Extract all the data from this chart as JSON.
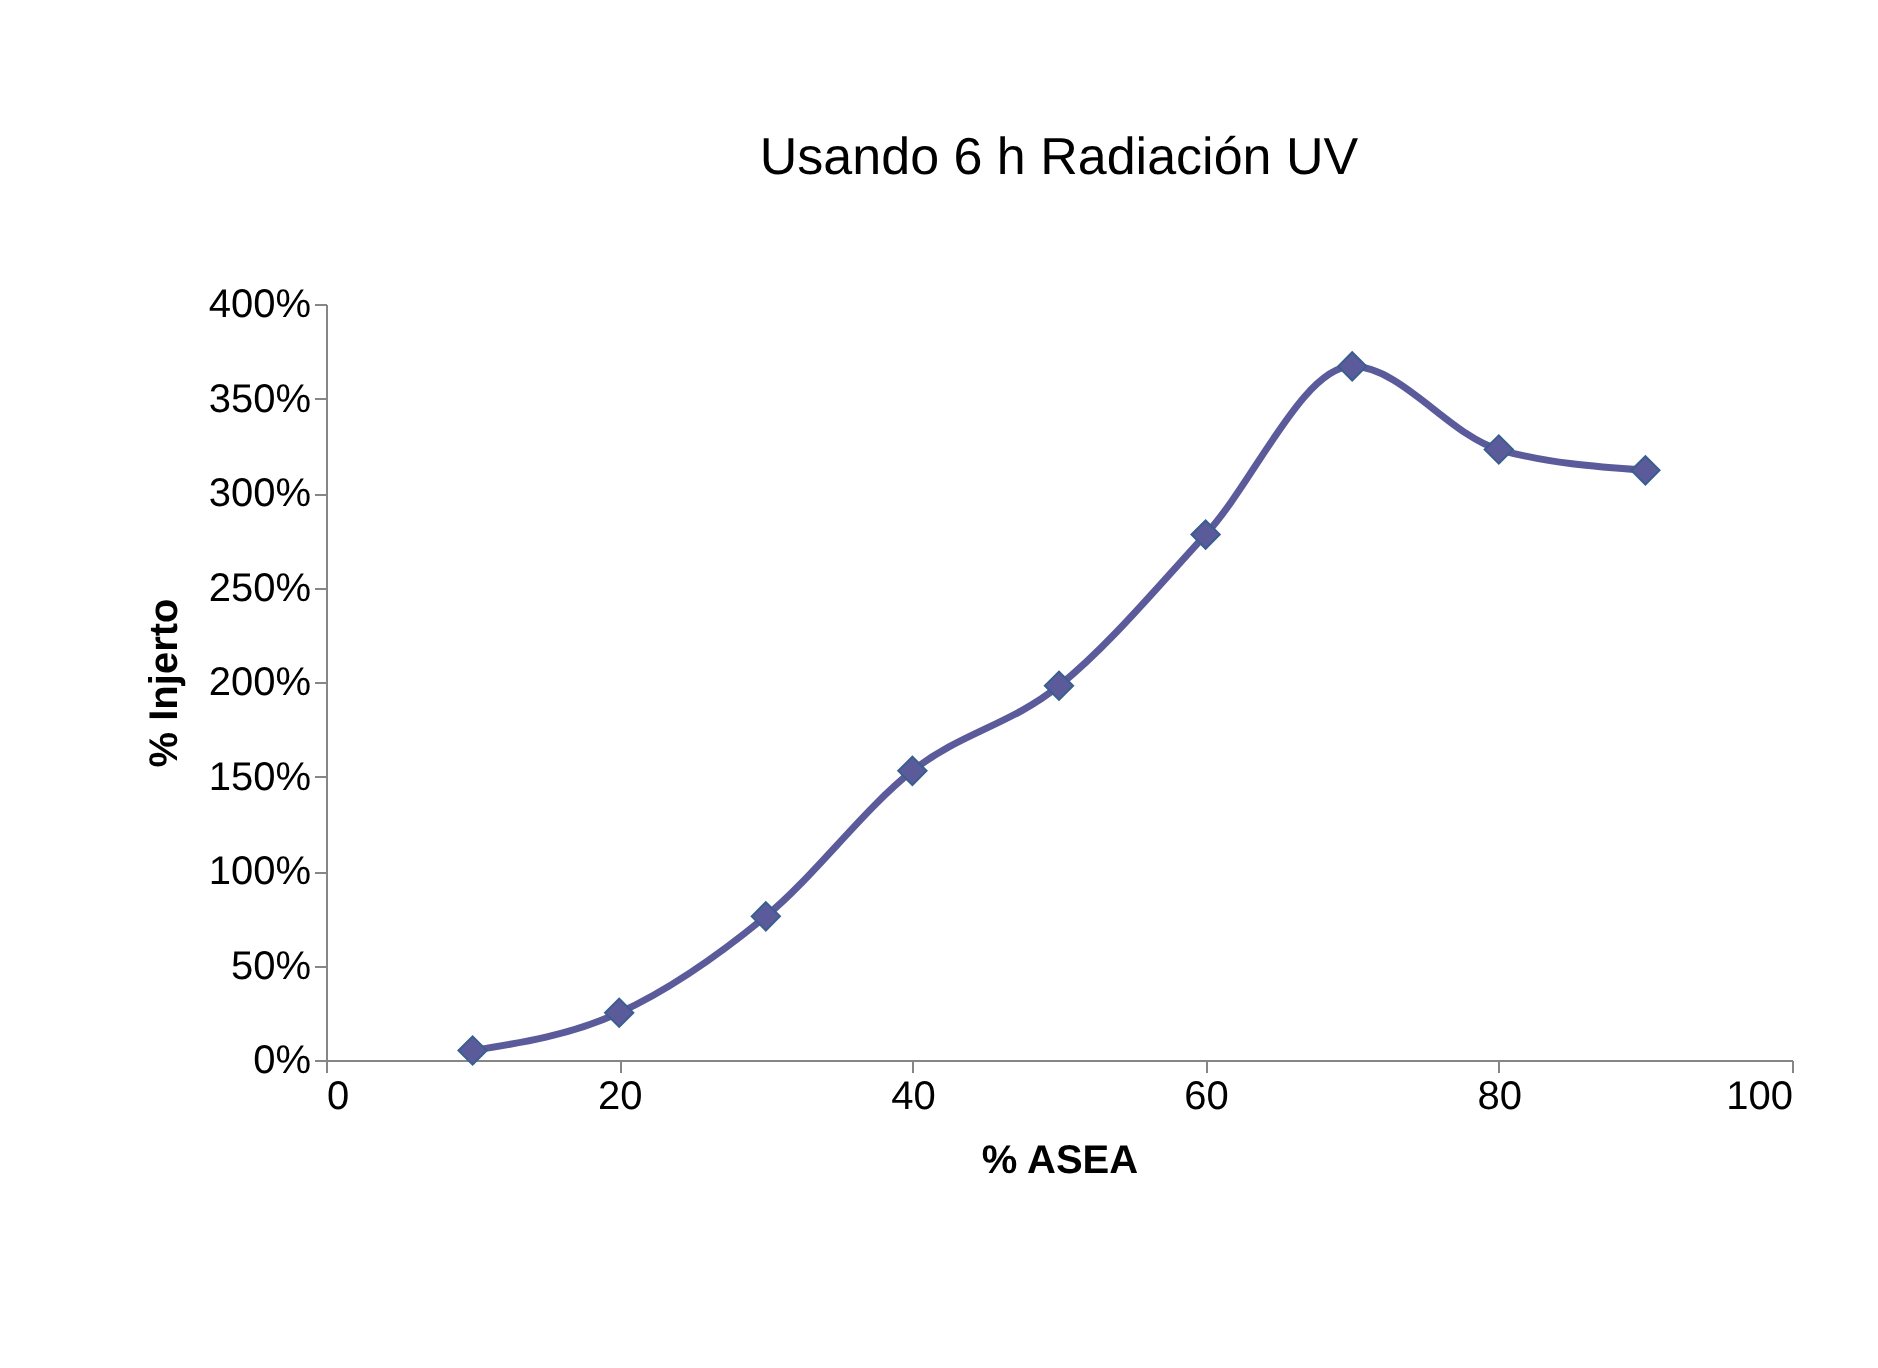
{
  "chart_data": {
    "type": "line",
    "title": "Usando 6 h Radiación UV",
    "xlabel": "% ASEA",
    "ylabel": "% Injerto",
    "x": [
      10,
      20,
      30,
      40,
      50,
      60,
      70,
      80,
      90
    ],
    "series": [
      {
        "color": "#5b5b9b",
        "values": [
          5,
          25,
          76,
          153,
          198,
          278,
          367,
          323,
          312
        ]
      }
    ],
    "marker": "diamond",
    "line_style": "solid",
    "xlim": [
      0,
      100
    ],
    "xticks": [
      0,
      20,
      40,
      60,
      80,
      100
    ],
    "ylim": [
      0,
      400
    ],
    "yticks": [
      {
        "value": 0,
        "label": "0%"
      },
      {
        "value": 50,
        "label": "50%"
      },
      {
        "value": 100,
        "label": "100%"
      },
      {
        "value": 150,
        "label": "150%"
      },
      {
        "value": 200,
        "label": "200%"
      },
      {
        "value": 250,
        "label": "250%"
      },
      {
        "value": 300,
        "label": "300%"
      },
      {
        "value": 350,
        "label": "350%"
      },
      {
        "value": 400,
        "label": "400%"
      }
    ]
  }
}
